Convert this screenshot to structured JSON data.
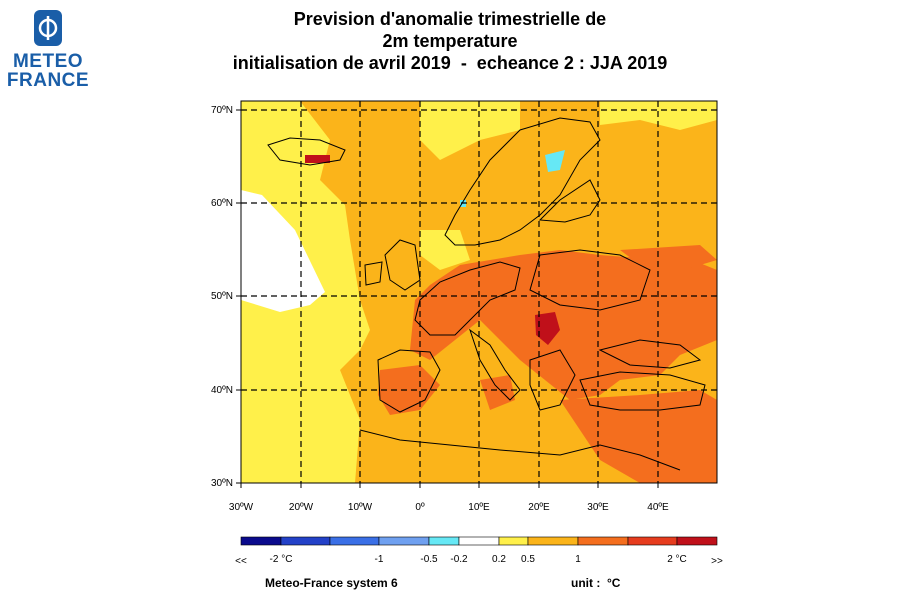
{
  "logo": {
    "line1": "METEO",
    "line2": "FRANCE"
  },
  "title": {
    "line1": "Prevision d'anomalie trimestrielle de",
    "line2": "2m temperature",
    "line3": "initialisation de avril 2019  -  echeance 2 : JJA 2019"
  },
  "map": {
    "lon_range": [
      -30,
      50
    ],
    "lat_range": [
      30,
      70
    ],
    "grid": "dashed",
    "lat_ticks": [
      "30ºN",
      "40ºN",
      "50ºN",
      "60ºN",
      "70ºN"
    ],
    "lon_ticks": [
      "30ºW",
      "20ºW",
      "10ºW",
      "0º",
      "10ºE",
      "20ºE",
      "30ºE",
      "40ºE"
    ]
  },
  "colorbar": {
    "labels": [
      "<<",
      "-2 °C",
      "-1",
      "-0.5",
      "-0.2",
      "0.2",
      "0.5",
      "1",
      "2 °C",
      ">>"
    ],
    "colors": [
      "#0a0a8c",
      "#2341c8",
      "#3a6fe6",
      "#6fa0f0",
      "#66e8f5",
      "#ffffff",
      "#fff04a",
      "#fbb41a",
      "#f46e1e",
      "#e63c1e",
      "#c0101a"
    ]
  },
  "footer": {
    "system": "Meteo-France system 6",
    "unit": "unit :  °C"
  }
}
